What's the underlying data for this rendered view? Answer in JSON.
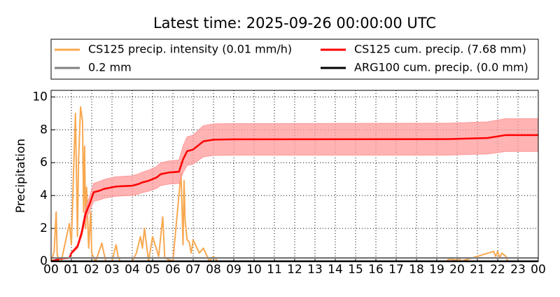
{
  "chart_data": {
    "type": "line",
    "title": "Latest time: 2025-09-26 00:00:00 UTC",
    "y_label": "Precipitation",
    "xlim": [
      0,
      24
    ],
    "ylim": [
      0,
      10.4
    ],
    "yticks": [
      0,
      2,
      4,
      6,
      8,
      10
    ],
    "xticks": [
      {
        "value": 0,
        "label": "00"
      },
      {
        "value": 1,
        "label": "01"
      },
      {
        "value": 2,
        "label": "02"
      },
      {
        "value": 3,
        "label": "03"
      },
      {
        "value": 4,
        "label": "04"
      },
      {
        "value": 5,
        "label": "05"
      },
      {
        "value": 6,
        "label": "06"
      },
      {
        "value": 7,
        "label": "07"
      },
      {
        "value": 8,
        "label": "08"
      },
      {
        "value": 9,
        "label": "09"
      },
      {
        "value": 10,
        "label": "10"
      },
      {
        "value": 11,
        "label": "11"
      },
      {
        "value": 12,
        "label": "12"
      },
      {
        "value": 13,
        "label": "13"
      },
      {
        "value": 14,
        "label": "14"
      },
      {
        "value": 15,
        "label": "15"
      },
      {
        "value": 16,
        "label": "16"
      },
      {
        "value": 17,
        "label": "17"
      },
      {
        "value": 18,
        "label": "18"
      },
      {
        "value": 19,
        "label": "19"
      },
      {
        "value": 20,
        "label": "20"
      },
      {
        "value": 21,
        "label": "21"
      },
      {
        "value": 22,
        "label": "22"
      },
      {
        "value": 23,
        "label": "23"
      },
      {
        "value": 24,
        "label": "00"
      }
    ],
    "grid": true,
    "series": [
      {
        "name": "CS125 precip. intensity (0.01 mm/h)",
        "color": "#f8a850",
        "x": [
          0,
          0.15,
          0.25,
          0.3,
          0.35,
          0.4,
          0.5,
          0.9,
          1.0,
          1.1,
          1.2,
          1.3,
          1.35,
          1.45,
          1.55,
          1.6,
          1.65,
          1.7,
          1.75,
          1.85,
          1.95,
          2.0,
          2.1,
          2.2,
          2.5,
          2.6,
          2.7,
          3.0,
          3.2,
          3.3,
          3.4,
          4.0,
          4.2,
          4.4,
          4.5,
          4.6,
          4.8,
          5.0,
          5.3,
          5.5,
          5.6,
          6.0,
          6.4,
          6.5,
          6.55,
          6.6,
          6.7,
          6.8,
          6.9,
          7.0,
          7.3,
          7.5,
          7.8,
          8.0,
          8.2,
          19.5,
          19.6,
          20.0,
          20.1,
          20.2,
          21.8,
          21.9,
          22.0,
          22.1,
          22.2,
          22.4,
          22.5
        ],
        "values": [
          0,
          0.6,
          3.0,
          0.4,
          0.2,
          0,
          0,
          2.3,
          1.0,
          5.2,
          9.0,
          1.5,
          6.0,
          9.4,
          8.5,
          3.0,
          7.0,
          2.0,
          4.5,
          0.8,
          3.0,
          0.5,
          0.2,
          0,
          1.1,
          0.5,
          0,
          0,
          1.0,
          0.3,
          0,
          0,
          0.5,
          1.5,
          0.8,
          2.0,
          0,
          1.5,
          0.3,
          2.7,
          0.2,
          0,
          5.4,
          1.0,
          4.9,
          2.5,
          1.3,
          1.2,
          0.5,
          1.3,
          0.5,
          0.8,
          0,
          0.3,
          0,
          0,
          0.15,
          0.05,
          0.2,
          0,
          0.6,
          0.3,
          0.6,
          0.2,
          0.5,
          0.3,
          0
        ]
      },
      {
        "name": "CS125 cum. precip. (7.68 mm)",
        "color": "#ff0000",
        "x": [
          0,
          0.3,
          0.4,
          0.9,
          1.0,
          1.3,
          1.5,
          1.7,
          1.9,
          2.1,
          2.4,
          2.6,
          3.0,
          3.2,
          4.0,
          4.3,
          4.5,
          4.8,
          5.2,
          5.4,
          5.8,
          6.3,
          6.5,
          6.7,
          7.0,
          7.2,
          7.5,
          8.0,
          9,
          19.5,
          20,
          21.5,
          22,
          22.4,
          24
        ],
        "values": [
          0,
          0.1,
          0.15,
          0.2,
          0.5,
          0.9,
          1.7,
          2.9,
          3.5,
          4.2,
          4.3,
          4.4,
          4.5,
          4.55,
          4.6,
          4.7,
          4.8,
          4.9,
          5.1,
          5.3,
          5.4,
          5.45,
          6.2,
          6.7,
          6.8,
          7.0,
          7.3,
          7.4,
          7.42,
          7.43,
          7.45,
          7.5,
          7.6,
          7.68,
          7.68
        ],
        "band_color": "#ff9999",
        "lower": [
          0,
          0.09,
          0.13,
          0.17,
          0.44,
          0.78,
          1.48,
          2.52,
          3.05,
          3.65,
          3.74,
          3.83,
          3.92,
          3.96,
          4.0,
          4.09,
          4.18,
          4.26,
          4.44,
          4.61,
          4.7,
          4.74,
          5.39,
          5.83,
          5.92,
          6.09,
          6.35,
          6.44,
          6.46,
          6.46,
          6.48,
          6.53,
          6.61,
          6.68,
          6.68
        ],
        "upper": [
          0,
          0.11,
          0.17,
          0.23,
          0.57,
          1.02,
          1.92,
          3.28,
          3.96,
          4.75,
          4.86,
          4.97,
          5.09,
          5.14,
          5.2,
          5.31,
          5.42,
          5.54,
          5.76,
          5.99,
          6.1,
          6.16,
          7.01,
          7.57,
          7.68,
          7.91,
          8.25,
          8.36,
          8.38,
          8.4,
          8.42,
          8.48,
          8.59,
          8.68,
          8.68
        ]
      },
      {
        "name": "0.2 mm",
        "color": "#808080",
        "x": [
          0,
          24
        ],
        "values": [
          0.2,
          0.2
        ]
      },
      {
        "name": "ARG100 cum. precip. (0.0 mm)",
        "color": "#000000",
        "x": [
          0,
          24
        ],
        "values": [
          0,
          0
        ]
      }
    ]
  }
}
